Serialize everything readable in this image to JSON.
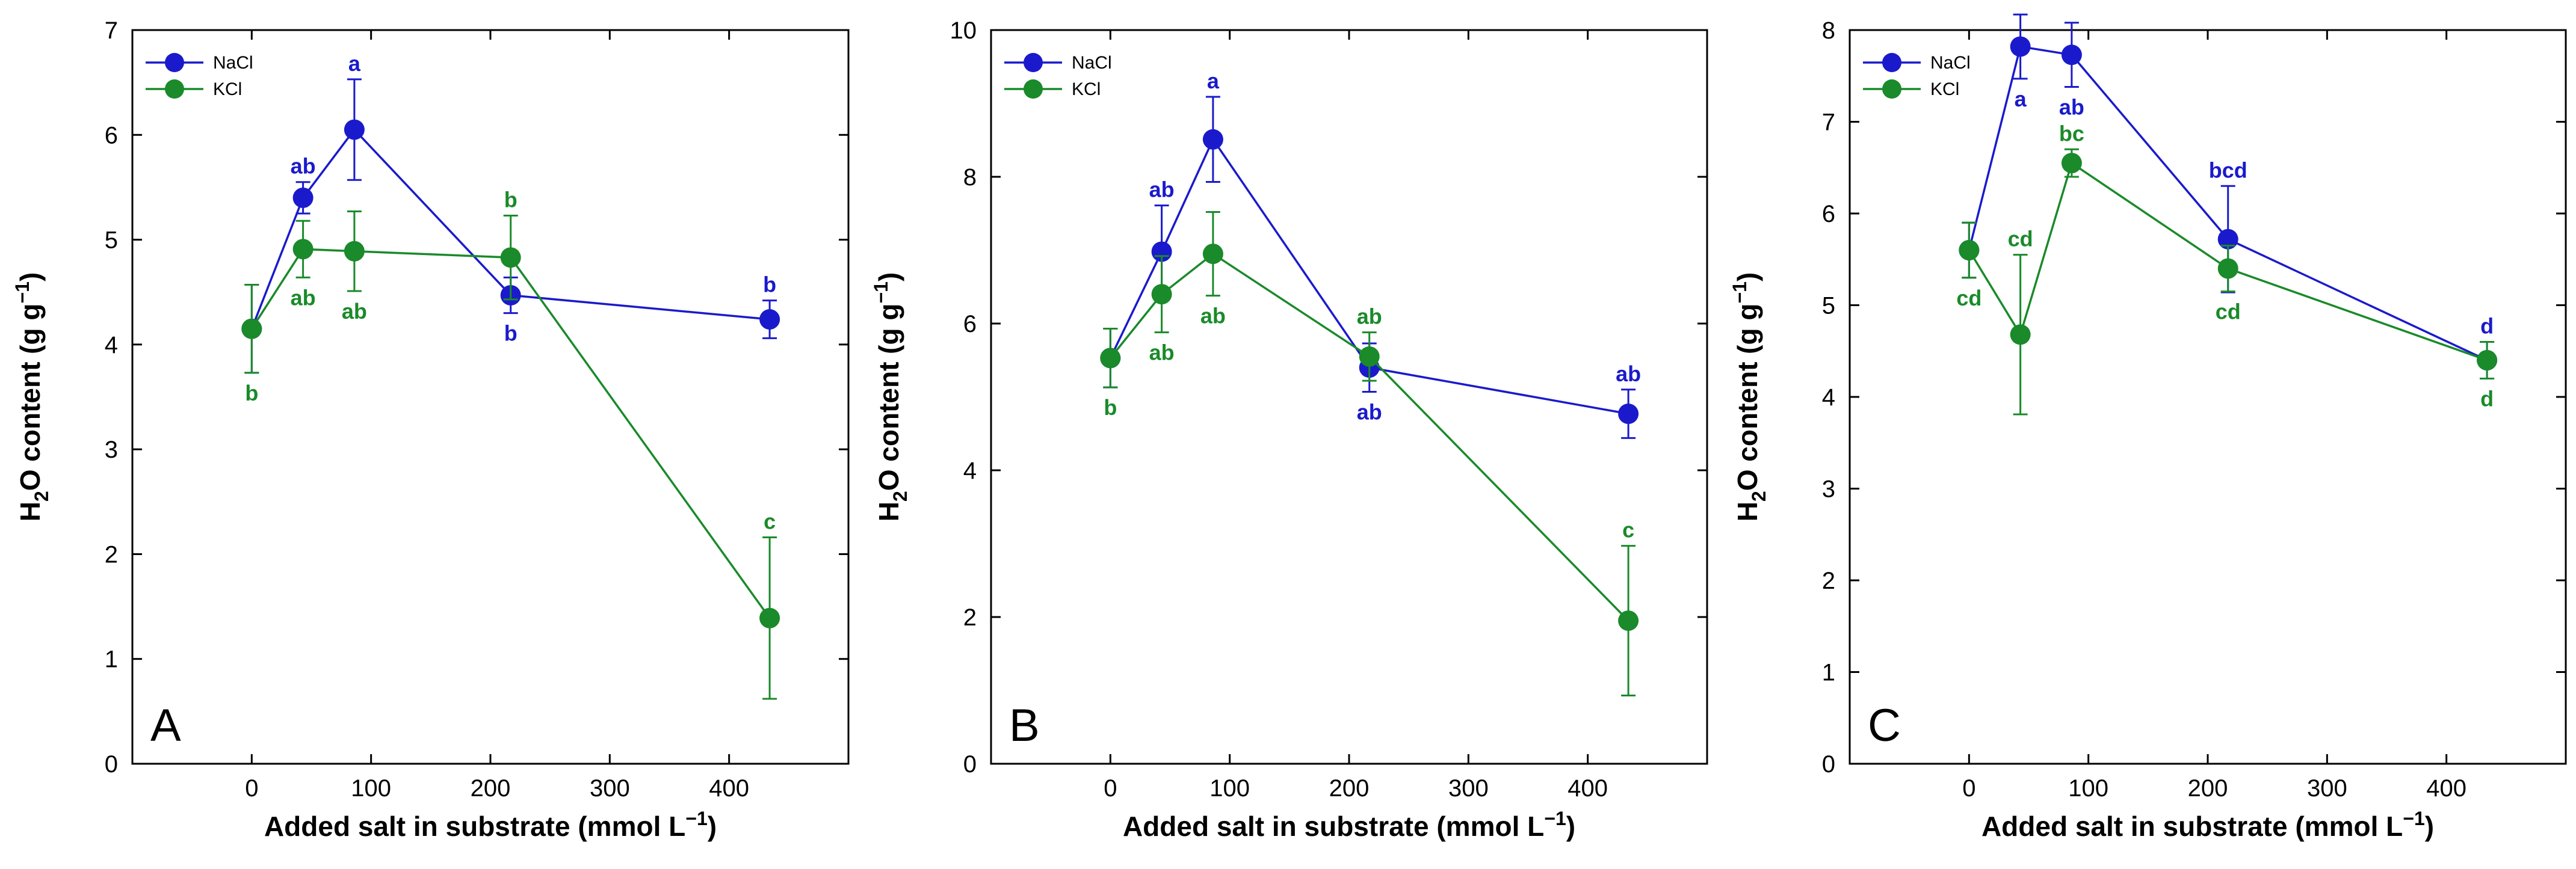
{
  "figure": {
    "series_colors": {
      "NaCl": "#1a1acc",
      "KCl": "#1a8a2a"
    }
  },
  "chart_data": [
    {
      "type": "line",
      "panel_label": "A",
      "xlabel_main": "Added salt in substrate (mmol L",
      "xlabel_sup": "−1",
      "xlabel_close": ")",
      "ylabel_main": "H",
      "ylabel_sub": "2",
      "ylabel_mid": "O content (g g",
      "ylabel_sup": "−1",
      "ylabel_close": ")",
      "xlim": [
        -100,
        500
      ],
      "ylim": [
        0,
        7
      ],
      "xticks": [
        "0",
        "100",
        "200",
        "300",
        "400"
      ],
      "yticks": [
        "0",
        "1",
        "2",
        "3",
        "4",
        "5",
        "6",
        "7"
      ],
      "legend": {
        "position": "top-left",
        "entries": [
          "NaCl",
          "KCl"
        ]
      },
      "series": [
        {
          "name": "NaCl",
          "x": [
            0,
            43,
            86,
            217,
            434
          ],
          "y": [
            4.15,
            5.4,
            6.05,
            4.47,
            4.24
          ],
          "err": [
            0.42,
            0.15,
            0.48,
            0.17,
            0.18
          ],
          "letters": [
            "",
            "ab",
            "a",
            "b",
            "b"
          ],
          "letter_pos": [
            "above",
            "above",
            "above",
            "below",
            "above"
          ]
        },
        {
          "name": "KCl",
          "x": [
            0,
            43,
            86,
            217,
            434
          ],
          "y": [
            4.15,
            4.91,
            4.89,
            4.83,
            1.39
          ],
          "err": [
            0.42,
            0.27,
            0.38,
            0.4,
            0.77
          ],
          "letters": [
            "b",
            "ab",
            "ab",
            "b",
            "c"
          ],
          "letter_pos": [
            "below",
            "below",
            "below",
            "above",
            "above"
          ]
        }
      ]
    },
    {
      "type": "line",
      "panel_label": "B",
      "xlabel_main": "Added salt in substrate (mmol L",
      "xlabel_sup": "−1",
      "xlabel_close": ")",
      "ylabel_main": "H",
      "ylabel_sub": "2",
      "ylabel_mid": "O content (g g",
      "ylabel_sup": "−1",
      "ylabel_close": ")",
      "xlim": [
        -100,
        500
      ],
      "ylim": [
        0,
        10
      ],
      "xticks": [
        "0",
        "100",
        "200",
        "300",
        "400"
      ],
      "yticks": [
        "0",
        "2",
        "4",
        "6",
        "8",
        "10"
      ],
      "legend": {
        "position": "top-left",
        "entries": [
          "NaCl",
          "KCl"
        ]
      },
      "series": [
        {
          "name": "NaCl",
          "x": [
            0,
            43,
            86,
            217,
            434
          ],
          "y": [
            5.53,
            6.98,
            8.51,
            5.4,
            4.77
          ],
          "err": [
            0.4,
            0.63,
            0.58,
            0.33,
            0.33
          ],
          "letters": [
            "",
            "ab",
            "a",
            "ab",
            "ab"
          ],
          "letter_pos": [
            "above",
            "above",
            "above",
            "below",
            "above"
          ]
        },
        {
          "name": "KCl",
          "x": [
            0,
            43,
            86,
            217,
            434
          ],
          "y": [
            5.53,
            6.4,
            6.95,
            5.55,
            1.95
          ],
          "err": [
            0.4,
            0.52,
            0.57,
            0.33,
            1.02
          ],
          "letters": [
            "b",
            "ab",
            "ab",
            "ab",
            "c"
          ],
          "letter_pos": [
            "below",
            "below",
            "below",
            "above",
            "above"
          ]
        }
      ]
    },
    {
      "type": "line",
      "panel_label": "C",
      "xlabel_main": "Added salt in substrate (mmol L",
      "xlabel_sup": "−1",
      "xlabel_close": ")",
      "ylabel_main": "H",
      "ylabel_sub": "2",
      "ylabel_mid": "O content (g g",
      "ylabel_sup": "−1",
      "ylabel_close": ")",
      "xlim": [
        -100,
        500
      ],
      "ylim": [
        0,
        8
      ],
      "xticks": [
        "0",
        "100",
        "200",
        "300",
        "400"
      ],
      "yticks": [
        "0",
        "1",
        "2",
        "3",
        "4",
        "5",
        "6",
        "7",
        "8"
      ],
      "legend": {
        "position": "top-left",
        "entries": [
          "NaCl",
          "KCl"
        ]
      },
      "series": [
        {
          "name": "NaCl",
          "x": [
            0,
            43,
            86,
            217,
            434
          ],
          "y": [
            5.6,
            7.82,
            7.73,
            5.72,
            4.4
          ],
          "err": [
            0.3,
            0.35,
            0.35,
            0.58,
            0.2
          ],
          "letters": [
            "",
            "a",
            "ab",
            "bcd",
            "d"
          ],
          "letter_pos": [
            "above",
            "below",
            "below",
            "above",
            "above"
          ]
        },
        {
          "name": "KCl",
          "x": [
            0,
            43,
            86,
            217,
            434
          ],
          "y": [
            5.6,
            4.68,
            6.55,
            5.4,
            4.4
          ],
          "err": [
            0.3,
            0.87,
            0.15,
            0.25,
            0.2
          ],
          "letters": [
            "cd",
            "cd",
            "bc",
            "cd",
            "d"
          ],
          "letter_pos": [
            "below",
            "above",
            "above",
            "below",
            "below"
          ]
        }
      ]
    }
  ]
}
